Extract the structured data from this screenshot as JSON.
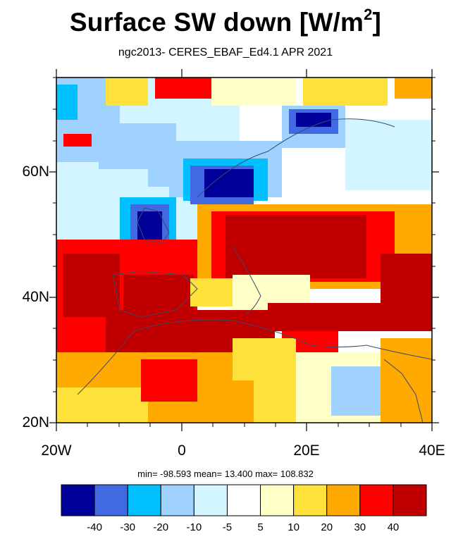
{
  "figure": {
    "title_main": "Surface SW down [W/m",
    "title_sup": "2",
    "title_end": "]",
    "subtitle": "ngc2013- CERES_EBAF_Ed4.1  APR 2021"
  },
  "map_data": {
    "lon_range": [
      -20,
      40
    ],
    "lat_range": [
      20,
      75
    ],
    "y_ticks": [
      "60N",
      "40N",
      "20N"
    ],
    "y_tick_values": [
      60,
      40,
      20
    ],
    "x_ticks": [
      "20W",
      "0",
      "20E",
      "40E"
    ],
    "x_tick_values": [
      -20,
      0,
      20,
      40
    ],
    "anomaly_regions": [
      {
        "label": "strong-negative",
        "lon": [
          -5,
          2
        ],
        "lat": [
          51,
          58
        ],
        "value": -45
      },
      {
        "label": "strong-negative",
        "lon": [
          0,
          10
        ],
        "lat": [
          58,
          63
        ],
        "value": -45
      },
      {
        "label": "strong-negative",
        "lon": [
          18,
          28
        ],
        "lat": [
          64,
          70
        ],
        "value": -40
      },
      {
        "label": "negative",
        "lon": [
          -20,
          0
        ],
        "lat": [
          60,
          75
        ],
        "value": -15
      },
      {
        "label": "positive",
        "lon": [
          -20,
          40
        ],
        "lat": [
          25,
          40
        ],
        "value": 35
      },
      {
        "label": "positive",
        "lon": [
          5,
          40
        ],
        "lat": [
          42,
          53
        ],
        "value": 40
      }
    ]
  },
  "stats": {
    "text": "min= -98.593  mean=  13.400  max= 108.832"
  },
  "colorbar": {
    "colors": [
      "#000099",
      "#4169e1",
      "#00bfff",
      "#a0d2ff",
      "#d2f5ff",
      "#ffffff",
      "#ffffc8",
      "#ffe13c",
      "#ffaa00",
      "#ff0000",
      "#c00000"
    ],
    "labels": [
      "-40",
      "-30",
      "-20",
      "-10",
      "-5",
      "5",
      "10",
      "20",
      "30",
      "40"
    ]
  }
}
